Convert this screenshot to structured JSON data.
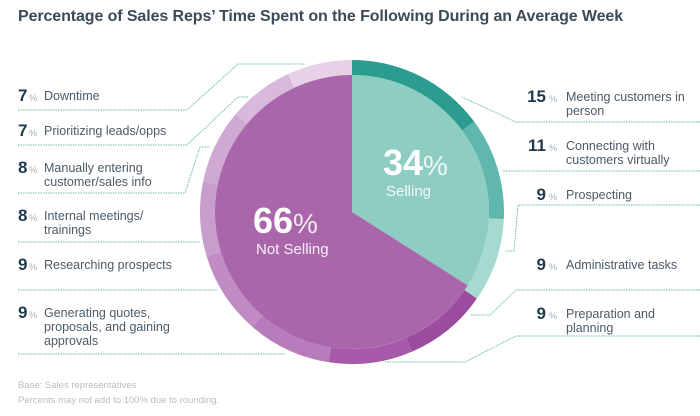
{
  "chart_data": {
    "type": "pie",
    "title": "Percentage of Sales Reps’ Time Spent on the Following During an Average Week",
    "inner": [
      {
        "name": "Selling",
        "value": 34,
        "color": "#8ecdc1"
      },
      {
        "name": "Not Selling",
        "value": 66,
        "color": "#a966ab"
      }
    ],
    "outer": [
      {
        "label": "Meeting customers in person",
        "value": 15,
        "group": "Selling",
        "color": "#2b9c8f"
      },
      {
        "label": "Connecting with customers virtually",
        "value": 11,
        "group": "Selling",
        "color": "#5fb7ad"
      },
      {
        "label": "Prospecting",
        "value": 9,
        "group": "Selling",
        "color": "#a6d9d0"
      },
      {
        "label": "Administrative tasks",
        "value": 9,
        "group": "Not Selling",
        "color": "#9b4c9e"
      },
      {
        "label": "Preparation and planning",
        "value": 9,
        "group": "Not Selling",
        "color": "#a65aa9"
      },
      {
        "label": "Generating quotes, proposals, and gaining approvals",
        "value": 9,
        "group": "Not Selling",
        "color": "#b87bbb"
      },
      {
        "label": "Researching prospects",
        "value": 9,
        "group": "Not Selling",
        "color": "#c18cc3"
      },
      {
        "label": "Internal meetings/ trainings",
        "value": 8,
        "group": "Not Selling",
        "color": "#c99dcb"
      },
      {
        "label": "Manually entering customer/sales info",
        "value": 8,
        "group": "Not Selling",
        "color": "#d0a9d2"
      },
      {
        "label": "Prioritizing leads/opps",
        "value": 7,
        "group": "Not Selling",
        "color": "#d9b9db"
      },
      {
        "label": "Downtime",
        "value": 7,
        "group": "Not Selling",
        "color": "#e6d1e7"
      }
    ],
    "center_labels": {
      "selling_value": "34",
      "selling_label": "Selling",
      "not_selling_value": "66",
      "not_selling_label": "Not Selling",
      "percent_sign": "%"
    },
    "footnotes": [
      "Base: Sales representatives",
      "Percents may not add to 100% due to rounding."
    ]
  }
}
